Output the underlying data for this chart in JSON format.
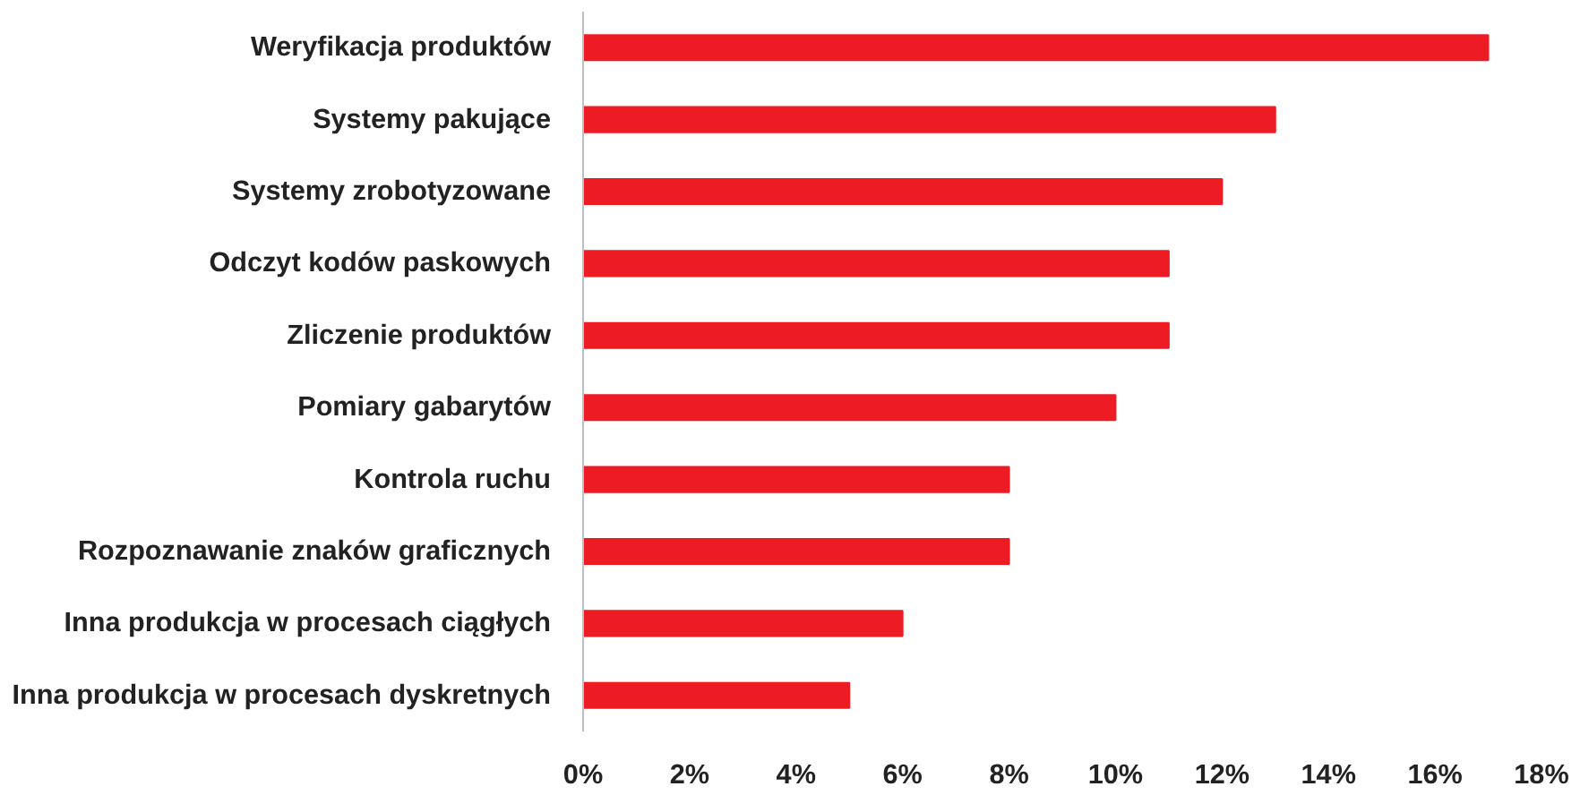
{
  "chart_data": {
    "type": "bar",
    "orientation": "horizontal",
    "categories": [
      "Weryfikacja produktów",
      "Systemy pakujące",
      "Systemy zrobotyzowane",
      "Odczyt kodów paskowych",
      "Zliczenie produktów",
      "Pomiary gabarytów",
      "Kontrola ruchu",
      "Rozpoznawanie znaków graficznych",
      "Inna produkcja w procesach ciągłych",
      "Inna produkcja w procesach dyskretnych"
    ],
    "values": [
      17,
      13,
      12,
      11,
      11,
      10,
      8,
      8,
      6,
      5
    ],
    "color": "#ed1c24",
    "xlim": [
      0,
      18
    ],
    "xticks": [
      {
        "value": 0,
        "label": "0%"
      },
      {
        "value": 2,
        "label": "2%"
      },
      {
        "value": 4,
        "label": "4%"
      },
      {
        "value": 6,
        "label": "6%"
      },
      {
        "value": 8,
        "label": "8%"
      },
      {
        "value": 10,
        "label": "10%"
      },
      {
        "value": 12,
        "label": "12%"
      },
      {
        "value": 14,
        "label": "14%"
      },
      {
        "value": 16,
        "label": "16%"
      },
      {
        "value": 18,
        "label": "18%"
      }
    ],
    "grid": false
  }
}
